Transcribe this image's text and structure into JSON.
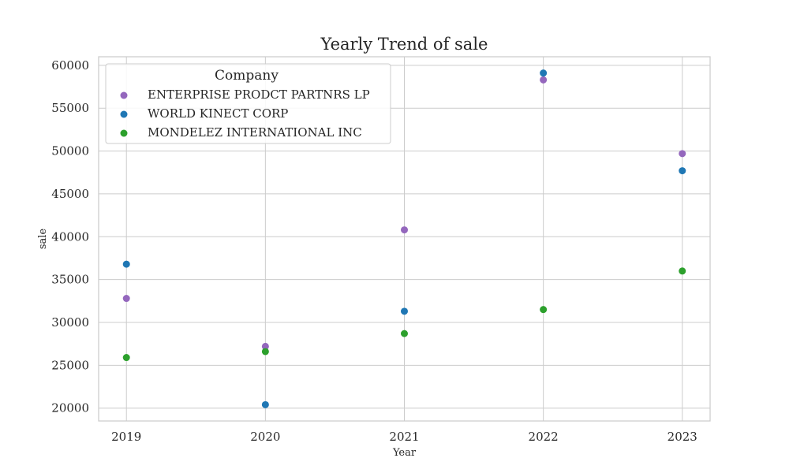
{
  "chart_data": {
    "type": "scatter",
    "title": "Yearly Trend of sale",
    "xlabel": "Year",
    "ylabel": "sale",
    "x": [
      2019,
      2020,
      2021,
      2022,
      2023
    ],
    "x_ticks": [
      "2019",
      "2020",
      "2021",
      "2022",
      "2023"
    ],
    "xlim": [
      2018.8,
      2023.2
    ],
    "ylim": [
      18500,
      61000
    ],
    "y_ticks": [
      20000,
      25000,
      30000,
      35000,
      40000,
      45000,
      50000,
      55000,
      60000
    ],
    "grid": true,
    "legend": {
      "title": "Company",
      "placement": "top-left"
    },
    "series": [
      {
        "name": "ENTERPRISE PRODCT PARTNRS LP",
        "color": "#9467bd",
        "values": [
          32800,
          27200,
          40800,
          58300,
          49700
        ]
      },
      {
        "name": "WORLD KINECT CORP",
        "color": "#1f77b4",
        "values": [
          36800,
          20400,
          31300,
          59100,
          47700
        ]
      },
      {
        "name": "MONDELEZ INTERNATIONAL INC",
        "color": "#2ca02c",
        "values": [
          25900,
          26600,
          28700,
          31500,
          36000
        ]
      }
    ]
  }
}
